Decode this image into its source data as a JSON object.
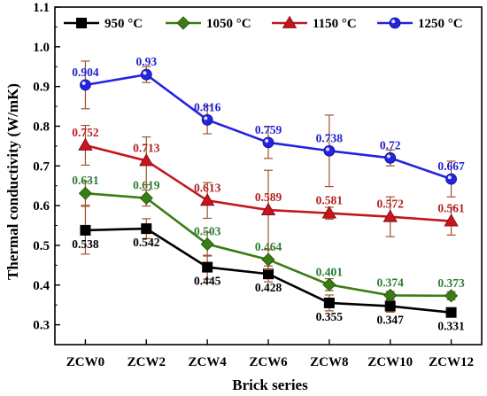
{
  "chart_data": {
    "type": "line",
    "title": "",
    "xlabel": "Brick series",
    "ylabel": "Thermal conductivity (W/mK)",
    "categories": [
      "ZCW0",
      "ZCW2",
      "ZCW4",
      "ZCW6",
      "ZCW8",
      "ZCW10",
      "ZCW12"
    ],
    "ylim": [
      0.25,
      1.1
    ],
    "yticks": [
      "0.3",
      "0.4",
      "0.5",
      "0.6",
      "0.7",
      "0.8",
      "0.9",
      "1.0",
      "1.1"
    ],
    "grid": false,
    "legend_position": "top",
    "series": [
      {
        "name": "950 °C",
        "color": "#000000",
        "marker": "square",
        "values": [
          0.538,
          0.542,
          0.445,
          0.428,
          0.355,
          0.347,
          0.331
        ],
        "labels": [
          "0.538",
          "0.542",
          "0.445",
          "0.428",
          "0.355",
          "0.347",
          "0.331"
        ],
        "errors": [
          0.06,
          0.025,
          0.03,
          0.02,
          0.02,
          0.015,
          0.01
        ],
        "label_position": "below"
      },
      {
        "name": "1050 °C",
        "color": "#3a7d12",
        "label_color": "#2e7d32",
        "marker": "diamond",
        "values": [
          0.631,
          0.619,
          0.503,
          0.464,
          0.401,
          0.374,
          0.373
        ],
        "labels": [
          "0.631",
          "0.619",
          "0.503",
          "0.464",
          "0.401",
          "0.374",
          "0.373"
        ],
        "errors": [
          0.03,
          0.02,
          0.03,
          0.025,
          0.015,
          0.01,
          0.01
        ],
        "label_position": "above"
      },
      {
        "name": "1150 °C",
        "color": "#c4161c",
        "label_color": "#b22222",
        "marker": "triangle",
        "values": [
          0.752,
          0.713,
          0.613,
          0.589,
          0.581,
          0.572,
          0.561
        ],
        "labels": [
          "0.752",
          "0.713",
          "0.613",
          "0.589",
          "0.581",
          "0.572",
          "0.561"
        ],
        "errors": [
          0.05,
          0.06,
          0.045,
          0.1,
          0.015,
          0.05,
          0.035
        ],
        "label_position": "above"
      },
      {
        "name": "1250 °C",
        "color": "#2323e0",
        "label_color": "#1f1fd1",
        "marker": "circle",
        "values": [
          0.904,
          0.93,
          0.816,
          0.759,
          0.738,
          0.72,
          0.667
        ],
        "labels": [
          "0.904",
          "0.93",
          "0.816",
          "0.759",
          "0.738",
          "0.72",
          "0.667"
        ],
        "errors": [
          0.06,
          0.02,
          0.035,
          0.04,
          0.09,
          0.02,
          0.045
        ],
        "label_position": "above"
      }
    ]
  }
}
